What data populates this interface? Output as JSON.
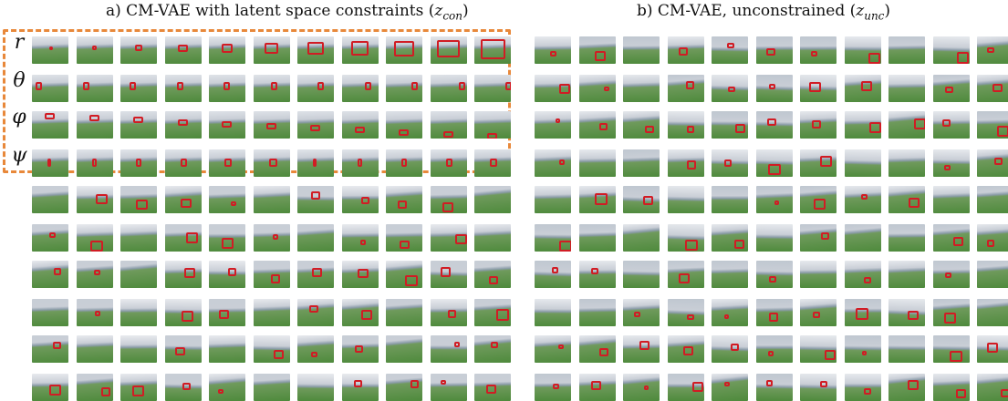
{
  "panels": {
    "a": {
      "title_prefix": "a) CM-VAE with latent space constraints (",
      "title_var": "z",
      "title_sub": "con",
      "title_suffix": ")",
      "row_labels": [
        "r",
        "θ",
        "φ",
        "ψ"
      ]
    },
    "b": {
      "title_prefix": "b) CM-VAE, unconstrained (",
      "title_var": "z",
      "title_sub": "unc",
      "title_suffix": ")"
    }
  },
  "colors": {
    "constraint_box": "#e8883a",
    "gate": "#d11c24",
    "sky_top": "#d9dde3",
    "ground": "#4e8a3c"
  }
}
